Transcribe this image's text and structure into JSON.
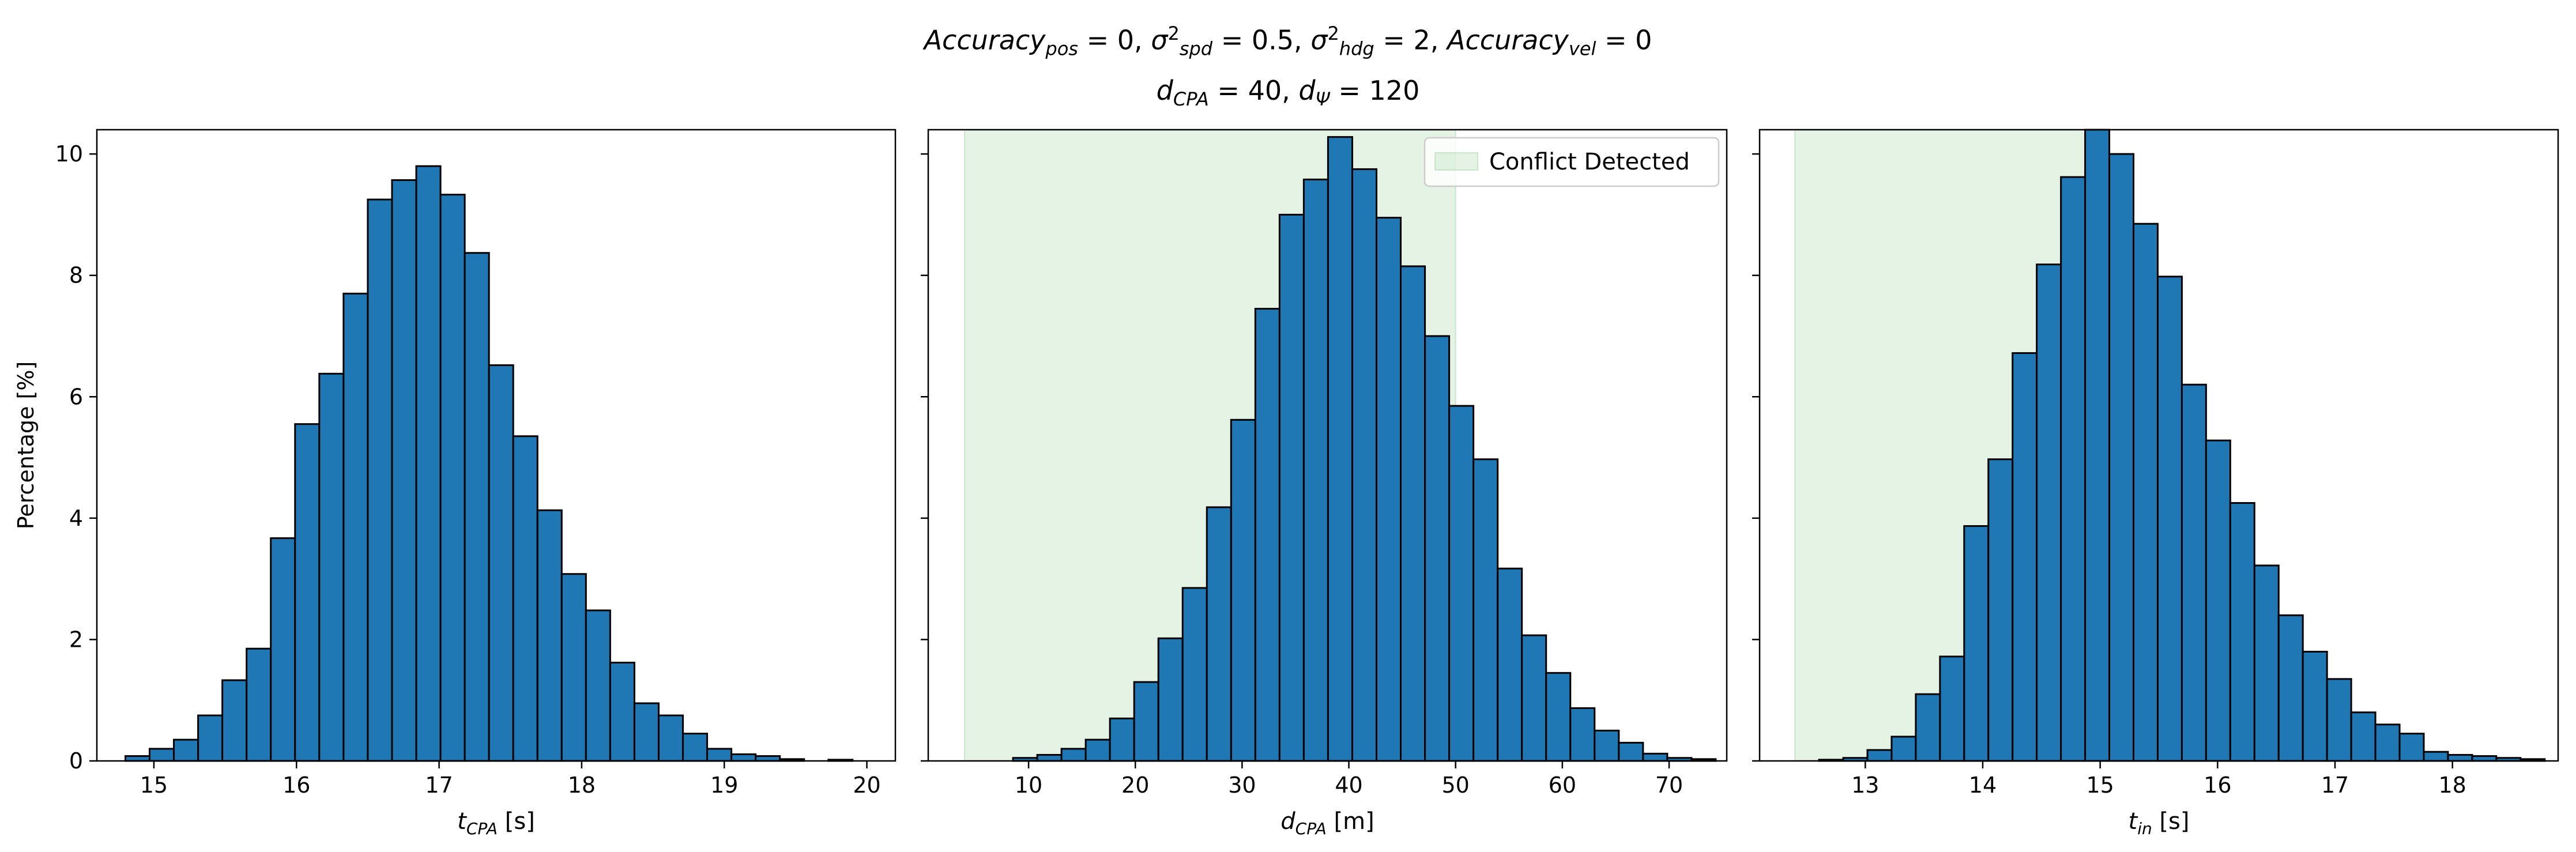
{
  "figure": {
    "title_line1": {
      "parts": [
        {
          "t": "Accuracy",
          "i": true
        },
        {
          "t": "pos",
          "sub": true
        },
        {
          "t": " = 0, "
        },
        {
          "t": "σ",
          "i": true
        },
        {
          "t": "2",
          "sup": true
        },
        {
          "t": "spd",
          "sub": true
        },
        {
          "t": " = 0.5, "
        },
        {
          "t": "σ",
          "i": true
        },
        {
          "t": "2",
          "sup": true
        },
        {
          "t": "hdg",
          "sub": true
        },
        {
          "t": " = 2, "
        },
        {
          "t": "Accuracy",
          "i": true
        },
        {
          "t": "vel",
          "sub": true
        },
        {
          "t": " = 0"
        }
      ]
    },
    "title_line2": {
      "parts": [
        {
          "t": "d",
          "i": true
        },
        {
          "t": "CPA",
          "sub": true
        },
        {
          "t": " = 40, "
        },
        {
          "t": "d",
          "i": true
        },
        {
          "t": "Ψ",
          "sub": true
        },
        {
          "t": " = 120"
        }
      ]
    }
  },
  "colors": {
    "bar": "#1f77b4",
    "edge": "#000000",
    "conflict": "#2ca02c"
  },
  "chart_data": [
    {
      "type": "bar",
      "xlabel": {
        "main": "t",
        "sub": "CPA",
        "unit": " [s]"
      },
      "ylabel": "Percentage [%]",
      "xlim": [
        14.6,
        20.2
      ],
      "ylim": [
        0,
        10.4
      ],
      "xticks": [
        15,
        16,
        17,
        18,
        19,
        20
      ],
      "yticks": [
        0,
        2,
        4,
        6,
        8,
        10
      ],
      "bin_start": 14.8,
      "bin_width": 0.17,
      "values": [
        0.08,
        0.2,
        0.35,
        0.75,
        1.33,
        1.85,
        3.67,
        5.55,
        6.38,
        7.7,
        9.25,
        9.57,
        9.8,
        9.33,
        8.37,
        6.52,
        5.35,
        4.13,
        3.08,
        2.48,
        1.62,
        0.95,
        0.75,
        0.45,
        0.2,
        0.11,
        0.08,
        0.03,
        0.0,
        0.02
      ],
      "conflict_span": null,
      "legend": null
    },
    {
      "type": "bar",
      "xlabel": {
        "main": "d",
        "sub": "CPA",
        "unit": " [m]"
      },
      "ylabel": "",
      "xlim": [
        0.6,
        75.4
      ],
      "ylim": [
        0,
        10.4
      ],
      "xticks": [
        10,
        20,
        30,
        40,
        50,
        60,
        70
      ],
      "yticks": [
        0,
        2,
        4,
        6,
        8,
        10
      ],
      "bin_start": 4.0,
      "bin_width": 2.27,
      "values": [
        0.0,
        0.0,
        0.05,
        0.1,
        0.2,
        0.35,
        0.7,
        1.3,
        2.02,
        2.85,
        4.18,
        5.62,
        7.45,
        9.0,
        9.58,
        10.28,
        9.75,
        8.95,
        8.15,
        7.0,
        5.85,
        4.97,
        3.17,
        2.07,
        1.45,
        0.87,
        0.5,
        0.3,
        0.12,
        0.05,
        0.03
      ],
      "conflict_span": [
        4,
        50
      ],
      "legend": {
        "label": "Conflict Detected",
        "loc": "upper right"
      }
    },
    {
      "type": "bar",
      "xlabel": {
        "main": "t",
        "sub": "in",
        "unit": " [s]"
      },
      "ylabel": "",
      "xlim": [
        12.1,
        18.9
      ],
      "ylim": [
        0,
        10.4
      ],
      "xticks": [
        13,
        14,
        15,
        16,
        17,
        18
      ],
      "yticks": [
        0,
        2,
        4,
        6,
        8,
        10
      ],
      "bin_start": 12.4,
      "bin_width": 0.206,
      "values": [
        0.0,
        0.02,
        0.05,
        0.18,
        0.4,
        1.1,
        1.72,
        3.87,
        4.97,
        6.72,
        8.18,
        9.62,
        10.5,
        10.0,
        8.85,
        7.98,
        6.2,
        5.28,
        4.25,
        3.22,
        2.4,
        1.8,
        1.35,
        0.8,
        0.6,
        0.45,
        0.15,
        0.1,
        0.08,
        0.05,
        0.03
      ],
      "conflict_span": [
        12.4,
        15.0
      ],
      "legend": null
    }
  ]
}
